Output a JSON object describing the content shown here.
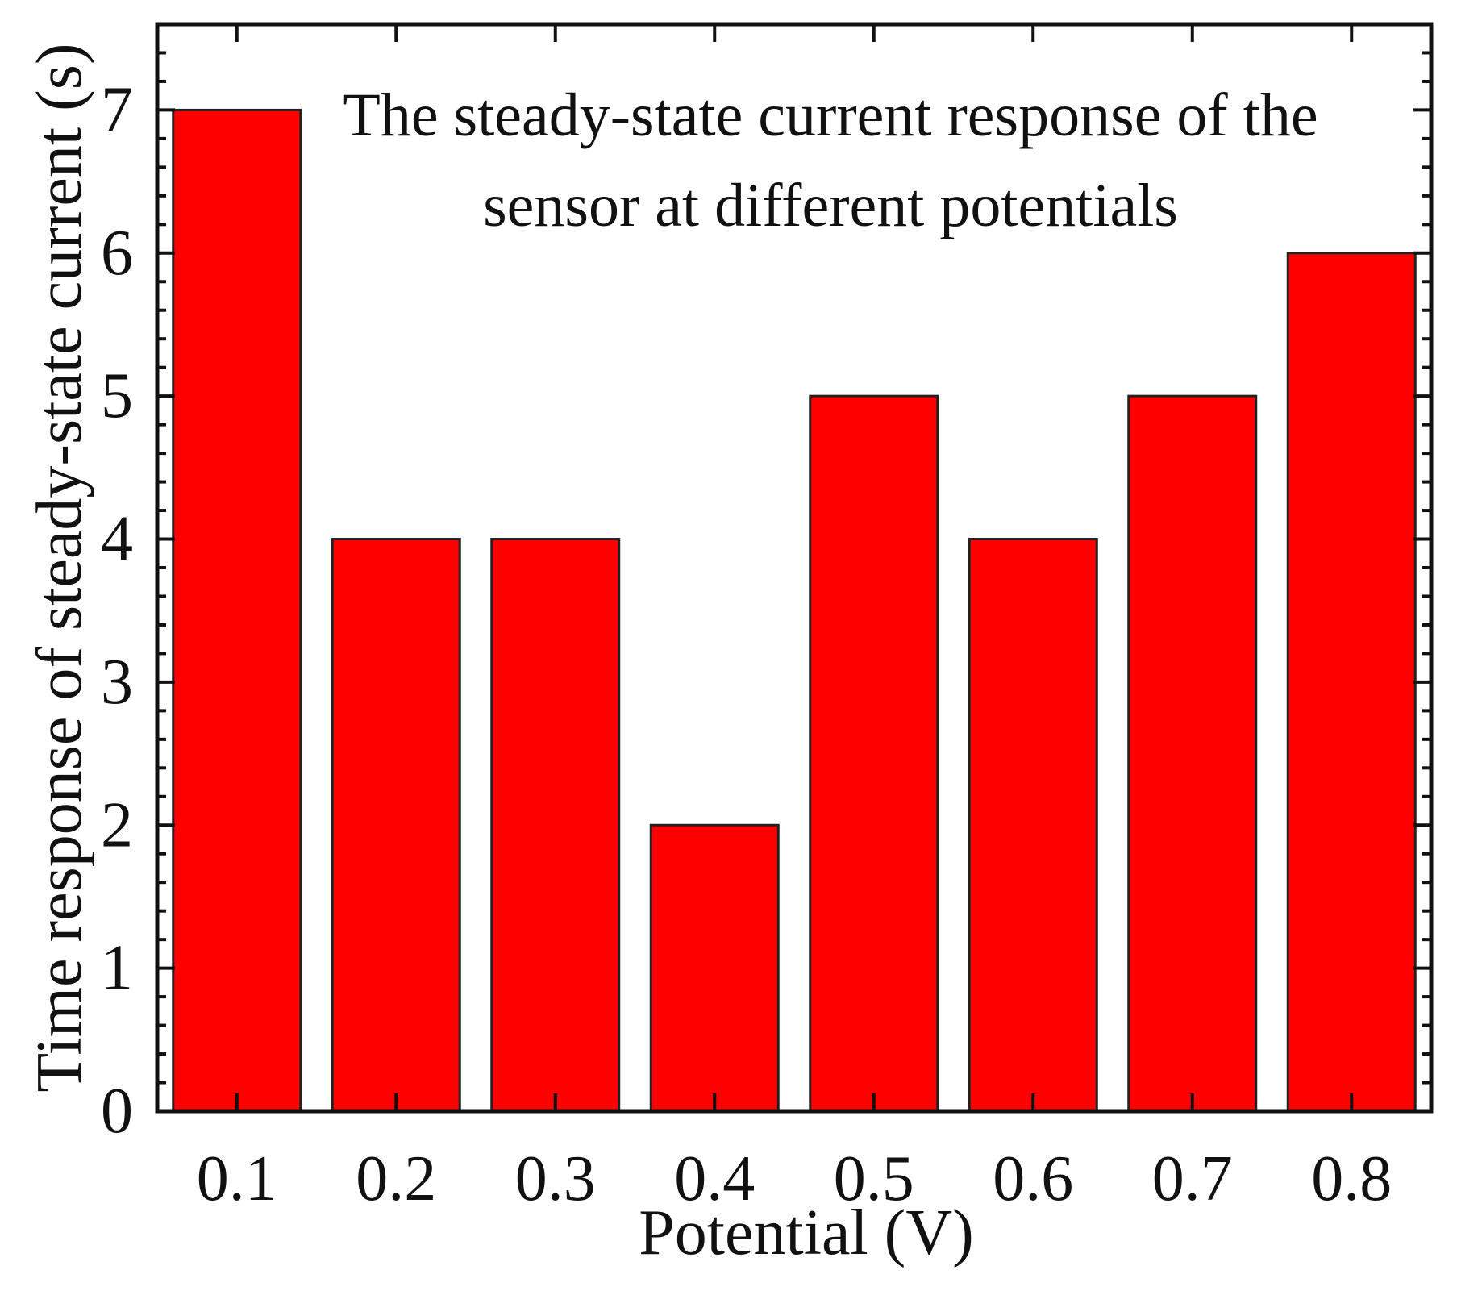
{
  "chart_data": {
    "type": "bar",
    "title_lines": [
      "The steady-state current response of the",
      "sensor at different potentials"
    ],
    "xlabel": "Potential (V)",
    "ylabel": "Time response of steady-state current (s)",
    "categories": [
      "0.1",
      "0.2",
      "0.3",
      "0.4",
      "0.5",
      "0.6",
      "0.7",
      "0.8"
    ],
    "values": [
      7,
      4,
      4,
      2,
      5,
      4,
      5,
      6
    ],
    "ylim": [
      0,
      7.6
    ],
    "yticks": [
      0,
      1,
      2,
      3,
      4,
      5,
      6,
      7
    ],
    "grid": false,
    "bar_color": "#ff0000"
  }
}
